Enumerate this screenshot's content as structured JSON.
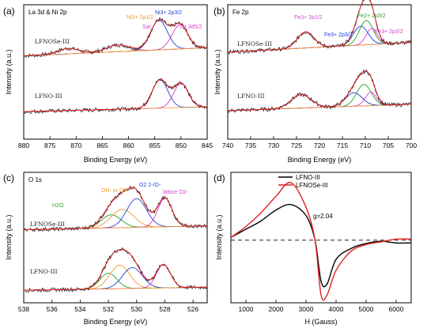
{
  "chart_data": [
    {
      "panel": "(a)",
      "type": "line",
      "title": "La 3d & Ni 2p",
      "xlabel": "Binding Energy (eV)",
      "ylabel": "Intensity (a.u.)",
      "xlim": [
        880,
        845
      ],
      "x_ticks": [
        880,
        875,
        870,
        865,
        860,
        855,
        850,
        845
      ],
      "grid": false,
      "spectra": [
        {
          "label": "LFNOSe-III",
          "offset": 0.58,
          "background_level": 0.1,
          "peaks": [
            {
              "name": "Ni 2p3/2 (Ni3+)",
              "center": 854.2,
              "height": 0.22,
              "width": 1.6,
              "color": "#1f3fd6"
            },
            {
              "name": "La 3d5/2",
              "center": 850.2,
              "height": 0.18,
              "width": 1.5,
              "color": "#d83bd2"
            },
            {
              "name": "Ni 2p1/2",
              "center": 871.5,
              "height": 0.04,
              "width": 2.0,
              "color": "#f29a2e"
            },
            {
              "name": "Sat.",
              "center": 862.0,
              "height": 0.05,
              "width": 2.2,
              "color": "#c04fc8"
            }
          ]
        },
        {
          "label": "LFNO-III",
          "offset": 0.18,
          "background_level": 0.06,
          "peaks": [
            {
              "name": "Ni 2p3/2 (Ni3+)",
              "center": 854.0,
              "height": 0.21,
              "width": 1.5,
              "color": "#1f3fd6"
            },
            {
              "name": "La 3d5/2",
              "center": 850.0,
              "height": 0.18,
              "width": 1.4,
              "color": "#d83bd2"
            }
          ]
        }
      ],
      "annotations": [
        {
          "text": "Ni3+ 2p1/2",
          "color": "#f29a2e"
        },
        {
          "text": "Sat.",
          "color": "#c04fc8"
        },
        {
          "text": "Ni3+ 2p3/2",
          "color": "#1f3fd6"
        },
        {
          "text": "La 3d5/2",
          "color": "#d83bd2"
        }
      ]
    },
    {
      "panel": "(b)",
      "type": "line",
      "title": "Fe 2p",
      "xlabel": "Binding Energy (eV)",
      "ylabel": "Intensity (a.u.)",
      "xlim": [
        740,
        700
      ],
      "x_ticks": [
        740,
        735,
        730,
        725,
        720,
        715,
        710,
        705,
        700
      ],
      "grid": false,
      "spectra": [
        {
          "label": "LFNOSe-III",
          "offset": 0.6,
          "background_level": 0.12,
          "peaks": [
            {
              "name": "Fe3+ 2p1/2",
              "center": 723.0,
              "height": 0.12,
              "width": 1.8,
              "color": "#c04fc8"
            },
            {
              "name": "Fe3+ 2p3/2",
              "center": 711.0,
              "height": 0.14,
              "width": 1.6,
              "color": "#1f3fd6"
            },
            {
              "name": "Fe2+ 2p3/2",
              "center": 709.8,
              "height": 0.18,
              "width": 1.5,
              "color": "#2ca02c"
            },
            {
              "name": "Fe3+ 2p3/2 sat",
              "center": 708.6,
              "height": 0.12,
              "width": 1.2,
              "color": "#d83bd2"
            }
          ]
        },
        {
          "label": "LFNO-III",
          "offset": 0.18,
          "background_level": 0.08,
          "peaks": [
            {
              "name": "Fe3+ 2p1/2",
              "center": 724.0,
              "height": 0.1,
              "width": 2.2,
              "color": "#c04fc8"
            },
            {
              "name": "Fe3+ 2p3/2",
              "center": 712.5,
              "height": 0.1,
              "width": 1.8,
              "color": "#1f3fd6"
            },
            {
              "name": "Fe2+ 2p3/2",
              "center": 710.3,
              "height": 0.16,
              "width": 1.6,
              "color": "#2ca02c"
            },
            {
              "name": "Fe3+ 2p3/2 sat",
              "center": 708.8,
              "height": 0.1,
              "width": 1.2,
              "color": "#d83bd2"
            }
          ]
        }
      ],
      "annotations": [
        {
          "text": "Fe3+ 2p1/2",
          "color": "#c04fc8"
        },
        {
          "text": "Fe3+ 2p3/2",
          "color": "#1f3fd6"
        },
        {
          "text": "Fe2+ 2p3/2",
          "color": "#2ca02c"
        },
        {
          "text": "Fe3+ 2p3/2",
          "color": "#d83bd2"
        }
      ]
    },
    {
      "panel": "(c)",
      "type": "line",
      "title": "O 1s",
      "xlabel": "Binding Energy (eV)",
      "ylabel": "Intensity (a.u.)",
      "xlim": [
        538,
        525
      ],
      "x_ticks": [
        538,
        536,
        534,
        532,
        530,
        528,
        526
      ],
      "grid": false,
      "spectra": [
        {
          "label": "LFNOSe-III",
          "offset": 0.54,
          "background_level": 0.05,
          "peaks": [
            {
              "name": "H2O",
              "center": 531.8,
              "height": 0.1,
              "width": 0.7,
              "color": "#2ca02c"
            },
            {
              "name": "OH- or O2",
              "center": 531.0,
              "height": 0.14,
              "width": 0.8,
              "color": "#f29a2e"
            },
            {
              "name": "O2 2-/O-",
              "center": 530.0,
              "height": 0.22,
              "width": 0.7,
              "color": "#1f3fd6"
            },
            {
              "name": "lattice O2-",
              "center": 528.0,
              "height": 0.22,
              "width": 0.5,
              "color": "#d83bd2"
            }
          ]
        },
        {
          "label": "LFNO-III",
          "offset": 0.08,
          "background_level": 0.04,
          "peaks": [
            {
              "name": "H2O",
              "center": 532.0,
              "height": 0.12,
              "width": 0.6,
              "color": "#2ca02c"
            },
            {
              "name": "OH- or O2",
              "center": 531.2,
              "height": 0.18,
              "width": 0.7,
              "color": "#f29a2e"
            },
            {
              "name": "O2 2-/O-",
              "center": 530.3,
              "height": 0.16,
              "width": 0.7,
              "color": "#1f3fd6"
            },
            {
              "name": "lattice O2-",
              "center": 528.1,
              "height": 0.18,
              "width": 0.5,
              "color": "#d83bd2"
            }
          ]
        }
      ],
      "annotations": [
        {
          "text": "H2O",
          "color": "#2ca02c"
        },
        {
          "text": "OH- or O2",
          "color": "#f29a2e"
        },
        {
          "text": "O2 2-/O-",
          "color": "#1f3fd6"
        },
        {
          "text": "lattice O2-",
          "color": "#d83bd2"
        }
      ]
    },
    {
      "panel": "(d)",
      "type": "line",
      "xlabel": "H (Gauss)",
      "ylabel": "Intensity (a.u.)",
      "xlim": [
        500,
        6500
      ],
      "x_ticks": [
        1000,
        2000,
        3000,
        4000,
        5000,
        6000
      ],
      "grid": false,
      "legend": "top-left",
      "reference_line": {
        "y": 0.0,
        "style": "dashed"
      },
      "annotation": {
        "text": "g=2.04",
        "x": 3300
      },
      "series": [
        {
          "name": "LFNO-III",
          "color": "#000000",
          "x": [
            500,
            1000,
            1500,
            2000,
            2500,
            3000,
            3300,
            3500,
            3700,
            4000,
            4500,
            5000,
            5500,
            6000,
            6500
          ],
          "y": [
            0.05,
            0.2,
            0.35,
            0.55,
            0.65,
            0.45,
            0.0,
            -0.75,
            -0.8,
            -0.35,
            -0.15,
            -0.06,
            -0.02,
            -0.05,
            -0.05
          ]
        },
        {
          "name": "LFNOSe-III",
          "color": "#e02020",
          "x": [
            500,
            1000,
            1500,
            2000,
            2500,
            3000,
            3300,
            3500,
            3700,
            4000,
            4500,
            5000,
            5500,
            6000,
            6500
          ],
          "y": [
            0.05,
            0.25,
            0.5,
            0.8,
            1.05,
            0.6,
            0.0,
            -1.0,
            -1.0,
            -0.55,
            -0.2,
            -0.08,
            -0.03,
            0.02,
            0.02
          ]
        }
      ]
    }
  ],
  "labels": {
    "a": {
      "panel": "(a)",
      "title": "La 3d & Ni 2p",
      "xlabel": "Binding Energy (eV)",
      "ylabel": "Intensity (a.u.)",
      "s1": "LFNOSe-III",
      "s2": "LFNO-III"
    },
    "b": {
      "panel": "(b)",
      "title": "Fe 2p",
      "xlabel": "Binding Energy (eV)",
      "ylabel": "Intensity (a.u.)",
      "s1": "LFNOSe-III",
      "s2": "LFNO-III"
    },
    "c": {
      "panel": "(c)",
      "title": "O 1s",
      "xlabel": "Binding Energy (eV)",
      "ylabel": "Intensity (a.u.)",
      "s1": "LFNOSe-III",
      "s2": "LFNO-III"
    },
    "d": {
      "panel": "(d)",
      "xlabel": "H (Gauss)",
      "ylabel": "Intensity (a.u.)",
      "leg1": "LFNO-III",
      "leg2": "LFNOSe-III",
      "g": "g=2.04"
    }
  }
}
